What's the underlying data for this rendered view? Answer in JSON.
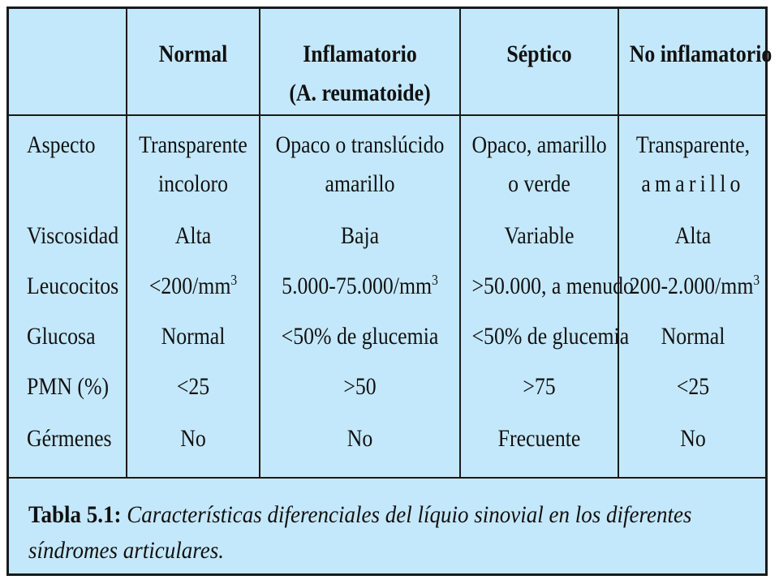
{
  "table": {
    "headers": [
      "",
      "Normal",
      "Inflamatorio",
      "Séptico",
      "No inflamatorio"
    ],
    "header_sub": "(A. reumatoide)",
    "rows": [
      {
        "label": "Aspecto",
        "normal": [
          "Transparente",
          "incoloro"
        ],
        "inflamatorio": [
          "Opaco o translúcido",
          "amarillo"
        ],
        "septico": [
          "Opaco, amarillo",
          "o verde"
        ],
        "no_inflamatorio": [
          "Transparente,",
          "amarillo"
        ]
      },
      {
        "label": "Viscosidad",
        "normal": "Alta",
        "inflamatorio": "Baja",
        "septico": "Variable",
        "no_inflamatorio": "Alta"
      },
      {
        "label": "Leucocitos",
        "normal": "<200/mm",
        "inflamatorio": "5.000-75.000/mm",
        "septico": ">50.000, a menudo",
        "no_inflamatorio": "200-2.000/mm",
        "unit_exponent": "3"
      },
      {
        "label": "Glucosa",
        "normal": "Normal",
        "inflamatorio": "<50% de glucemia",
        "septico": "<50% de glucemia",
        "no_inflamatorio": "Normal"
      },
      {
        "label": "PMN (%)",
        "normal": "<25",
        "inflamatorio": ">50",
        "septico": ">75",
        "no_inflamatorio": "<25"
      },
      {
        "label": "Gérmenes",
        "normal": "No",
        "inflamatorio": "No",
        "septico": "Frecuente",
        "no_inflamatorio": "No"
      }
    ]
  },
  "caption": {
    "label": "Tabla 5.1:",
    "text": "Características diferenciales del líquio sinovial en los diferentes síndromes articulares."
  },
  "colors": {
    "background": "#c4e8fb",
    "border": "#1a1a1a",
    "text": "#111111"
  }
}
